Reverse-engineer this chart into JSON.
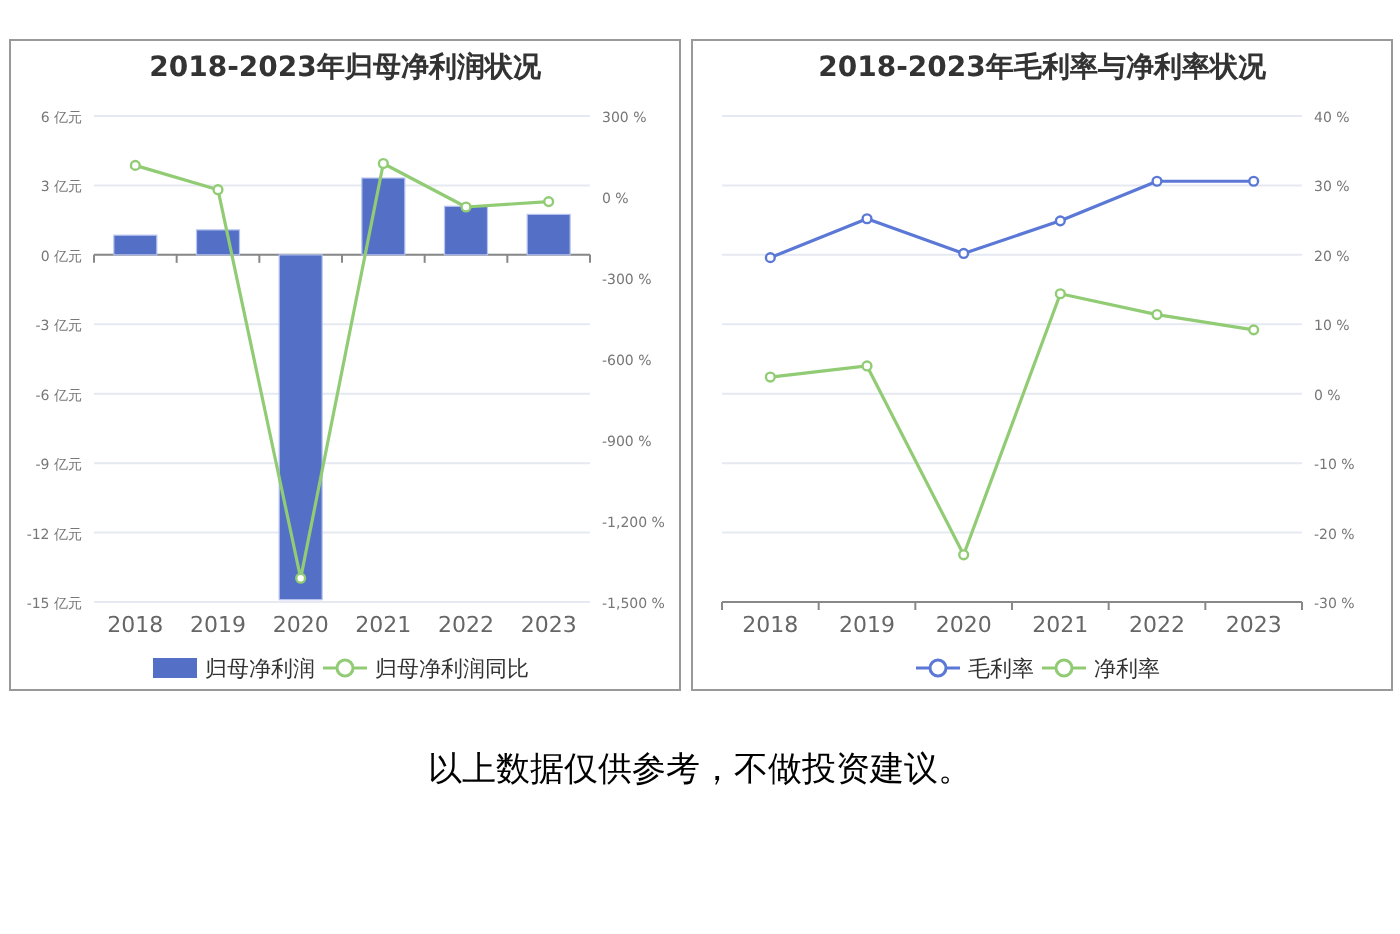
{
  "chart_data": [
    {
      "type": "bar",
      "title": "2018-2023年归母净利润状况",
      "categories": [
        "2018",
        "2019",
        "2020",
        "2021",
        "2022",
        "2023"
      ],
      "series": [
        {
          "name": "归母净利润",
          "type": "bar",
          "color": "#5470c6",
          "values": [
            0.85,
            1.08,
            -14.9,
            3.32,
            2.1,
            1.75
          ]
        },
        {
          "name": "归母净利润同比",
          "type": "line",
          "axis": "y2",
          "color": "#91cc75",
          "marker": "circle",
          "values": [
            117,
            27,
            -1412,
            124,
            -37,
            -17
          ]
        }
      ],
      "ylim": [
        -15,
        6
      ],
      "yticks": [
        {
          "value": -15,
          "label": "-15 亿元"
        },
        {
          "value": -12,
          "label": "-12 亿元"
        },
        {
          "value": -9,
          "label": "-9 亿元"
        },
        {
          "value": -6,
          "label": "-6 亿元"
        },
        {
          "value": -3,
          "label": "-3 亿元"
        },
        {
          "value": 0,
          "label": "0 亿元"
        },
        {
          "value": 3,
          "label": "3 亿元"
        },
        {
          "value": 6,
          "label": "6 亿元"
        }
      ],
      "y2lim": [
        -1500,
        300
      ],
      "y2ticks": [
        {
          "value": -1500,
          "label": "-1,500 %"
        },
        {
          "value": -1200,
          "label": "-1,200 %"
        },
        {
          "value": -900,
          "label": "-900 %"
        },
        {
          "value": -600,
          "label": "-600 %"
        },
        {
          "value": -300,
          "label": "-300 %"
        },
        {
          "value": 0,
          "label": "0 %"
        },
        {
          "value": 300,
          "label": "300 %"
        }
      ],
      "grid": "y",
      "legend": "bottom",
      "annotations": [
        "以上数据仅供参考，不做投资建议。"
      ]
    },
    {
      "type": "line",
      "title": "2018-2023年毛利率与净利率状况",
      "categories": [
        "2018",
        "2019",
        "2020",
        "2021",
        "2022",
        "2023"
      ],
      "series": [
        {
          "name": "毛利率",
          "axis": "y2",
          "color": "#5b78d6",
          "values": [
            19.6,
            25.2,
            20.2,
            24.9,
            30.6,
            30.6
          ]
        },
        {
          "name": "净利率",
          "axis": "y2",
          "color": "#91cc75",
          "values": [
            2.4,
            4.0,
            -23.2,
            14.4,
            11.4,
            9.2
          ]
        }
      ],
      "y2lim": [
        -30,
        40
      ],
      "y2ticks": [
        {
          "value": -30,
          "label": "-30 %"
        },
        {
          "value": -20,
          "label": "-20 %"
        },
        {
          "value": -10,
          "label": "-10 %"
        },
        {
          "value": 0,
          "label": "0 %"
        },
        {
          "value": 10,
          "label": "10 %"
        },
        {
          "value": 20,
          "label": "20 %"
        },
        {
          "value": 30,
          "label": "30 %"
        },
        {
          "value": 40,
          "label": "40 %"
        }
      ],
      "marker": "circle",
      "grid": "y",
      "legend": "bottom"
    }
  ]
}
